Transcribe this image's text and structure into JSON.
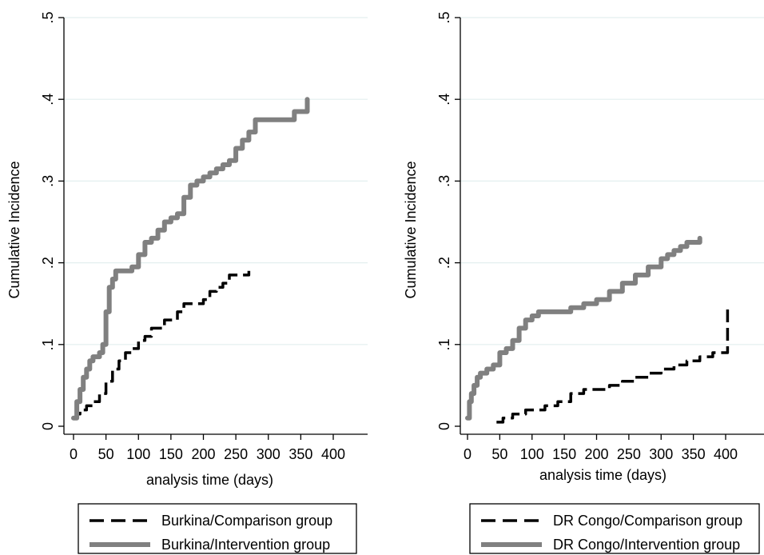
{
  "chart_data": [
    {
      "type": "line",
      "panel": "left",
      "ylabel": "Cumulative Incidence",
      "xlabel": "analysis time (days)",
      "xlim": [
        0,
        450
      ],
      "ylim": [
        0,
        0.5
      ],
      "xticks": [
        0,
        50,
        100,
        150,
        200,
        250,
        300,
        350,
        400
      ],
      "yticks": [
        0,
        0.1,
        0.2,
        0.3,
        0.4,
        0.5
      ],
      "ytick_labels": [
        "0",
        ".1",
        ".2",
        ".3",
        ".4",
        ".5"
      ],
      "grid": true,
      "legend_position": "bottom",
      "series": [
        {
          "name": "Burkina/Comparison group",
          "style": "dashed",
          "color": "#000000",
          "x": [
            0,
            5,
            10,
            20,
            30,
            40,
            50,
            60,
            70,
            80,
            90,
            100,
            110,
            120,
            140,
            160,
            170,
            180,
            190,
            200,
            210,
            220,
            230,
            240,
            250,
            260,
            270
          ],
          "y": [
            0.01,
            0.015,
            0.02,
            0.025,
            0.03,
            0.04,
            0.055,
            0.07,
            0.08,
            0.09,
            0.095,
            0.105,
            0.11,
            0.12,
            0.13,
            0.14,
            0.15,
            0.15,
            0.15,
            0.155,
            0.165,
            0.17,
            0.175,
            0.185,
            0.185,
            0.185,
            0.19
          ]
        },
        {
          "name": "Burkina/Intervention group",
          "style": "solid",
          "color": "#808080",
          "x": [
            0,
            5,
            10,
            15,
            20,
            25,
            30,
            35,
            40,
            45,
            50,
            55,
            60,
            65,
            70,
            80,
            90,
            100,
            110,
            120,
            130,
            140,
            150,
            160,
            170,
            180,
            190,
            200,
            210,
            220,
            230,
            240,
            250,
            260,
            270,
            280,
            290,
            300,
            310,
            320,
            330,
            340,
            350,
            360
          ],
          "y": [
            0.01,
            0.03,
            0.045,
            0.06,
            0.07,
            0.08,
            0.085,
            0.085,
            0.09,
            0.1,
            0.14,
            0.17,
            0.18,
            0.19,
            0.19,
            0.19,
            0.195,
            0.21,
            0.225,
            0.23,
            0.24,
            0.25,
            0.255,
            0.26,
            0.28,
            0.295,
            0.3,
            0.305,
            0.31,
            0.315,
            0.32,
            0.325,
            0.34,
            0.35,
            0.36,
            0.375,
            0.375,
            0.375,
            0.375,
            0.375,
            0.375,
            0.385,
            0.385,
            0.4
          ]
        }
      ]
    },
    {
      "type": "line",
      "panel": "right",
      "ylabel": "Cumulative Incidence",
      "xlabel": "analysis time (days)",
      "xlim": [
        0,
        450
      ],
      "ylim": [
        0,
        0.5
      ],
      "xticks": [
        0,
        50,
        100,
        150,
        200,
        250,
        300,
        350,
        400
      ],
      "yticks": [
        0,
        0.1,
        0.2,
        0.3,
        0.4,
        0.5
      ],
      "ytick_labels": [
        "0",
        ".1",
        ".2",
        ".3",
        ".4",
        ".5"
      ],
      "grid": true,
      "legend_position": "bottom",
      "series": [
        {
          "name": "DR Congo/Comparison group",
          "style": "dashed",
          "color": "#000000",
          "x": [
            45,
            55,
            70,
            90,
            100,
            120,
            140,
            160,
            180,
            200,
            220,
            240,
            260,
            280,
            300,
            320,
            340,
            360,
            380,
            400,
            403,
            403
          ],
          "y": [
            0.005,
            0.01,
            0.015,
            0.02,
            0.02,
            0.025,
            0.03,
            0.04,
            0.045,
            0.045,
            0.05,
            0.055,
            0.06,
            0.065,
            0.07,
            0.075,
            0.08,
            0.085,
            0.09,
            0.09,
            0.1,
            0.145
          ]
        },
        {
          "name": "DR Congo/Intervention group",
          "style": "solid",
          "color": "#808080",
          "x": [
            0,
            3,
            6,
            10,
            15,
            20,
            30,
            40,
            50,
            60,
            70,
            80,
            90,
            100,
            110,
            120,
            140,
            160,
            180,
            200,
            220,
            240,
            260,
            280,
            300,
            310,
            320,
            330,
            340,
            350,
            360
          ],
          "y": [
            0.01,
            0.03,
            0.04,
            0.05,
            0.06,
            0.065,
            0.07,
            0.075,
            0.09,
            0.095,
            0.105,
            0.12,
            0.13,
            0.135,
            0.14,
            0.14,
            0.14,
            0.145,
            0.15,
            0.155,
            0.165,
            0.175,
            0.185,
            0.195,
            0.205,
            0.21,
            0.215,
            0.22,
            0.225,
            0.225,
            0.23
          ]
        }
      ]
    }
  ]
}
